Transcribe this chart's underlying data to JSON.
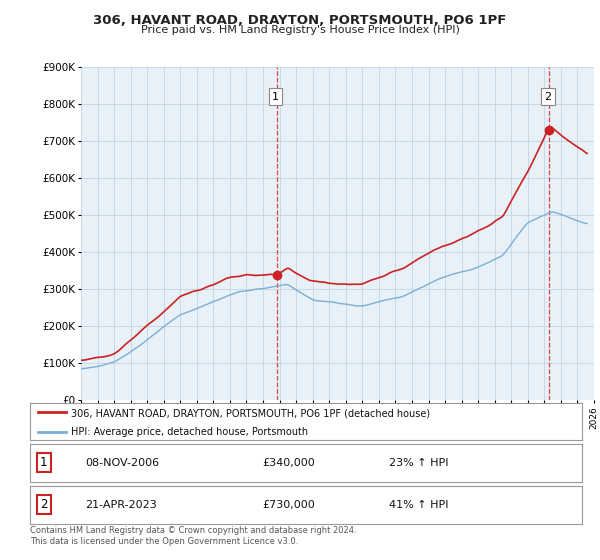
{
  "title": "306, HAVANT ROAD, DRAYTON, PORTSMOUTH, PO6 1PF",
  "subtitle": "Price paid vs. HM Land Registry's House Price Index (HPI)",
  "legend_line1": "306, HAVANT ROAD, DRAYTON, PORTSMOUTH, PO6 1PF (detached house)",
  "legend_line2": "HPI: Average price, detached house, Portsmouth",
  "sale1_date": "08-NOV-2006",
  "sale1_price": 340000,
  "sale1_pct": "23% ↑ HPI",
  "sale2_date": "21-APR-2023",
  "sale2_price": 730000,
  "sale2_pct": "41% ↑ HPI",
  "footer": "Contains HM Land Registry data © Crown copyright and database right 2024.\nThis data is licensed under the Open Government Licence v3.0.",
  "hpi_color": "#7bafd4",
  "price_color": "#cc2222",
  "vline_color": "#dd4444",
  "chart_bg": "#e8f0f8",
  "bg_color": "#ffffff",
  "grid_color": "#c8d8e8",
  "ylim_min": 0,
  "ylim_max": 900000,
  "xmin": 1995.0,
  "xmax": 2026.0,
  "sale1_x": 2006.86,
  "sale2_x": 2023.31
}
